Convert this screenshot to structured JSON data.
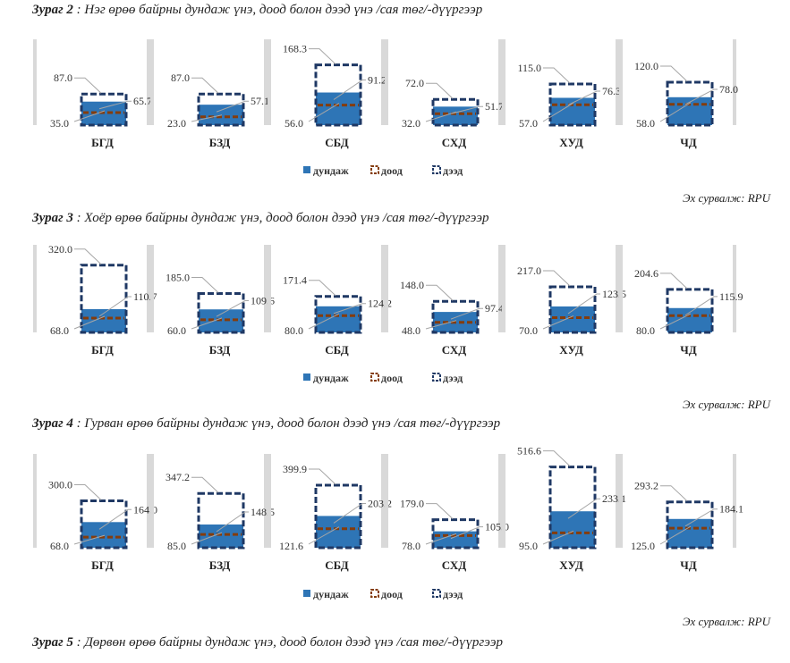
{
  "colors": {
    "avg": "#2e75b6",
    "low": "#843c0c",
    "high": "#1f3864",
    "separator": "#d9d9d9",
    "leader": "#a6a6a6"
  },
  "figures": [
    {
      "label": "Зураг 2",
      "rest": " : Нэг өрөө байрны дундаж үнэ, доод болон дээд үнэ /сая төг/-дүүргээр",
      "source": "Эх сурвалж: RPU"
    },
    {
      "label": "Зураг 3",
      "rest": " : Хоёр өрөө байрны дундаж үнэ, доод болон дээд үнэ /сая төг/-дүүргээр",
      "source": "Эх сурвалж: RPU"
    },
    {
      "label": "Зураг 4",
      "rest": " : Гурван өрөө байрны дундаж үнэ, доод болон дээд үнэ /сая төг/-дүүргээр",
      "source": "Эх сурвалж: RPU"
    },
    {
      "label": "Зураг 5",
      "rest": " : Дөрвөн өрөө байрны дундаж үнэ, доод болон дээд үнэ /сая төг/-дүүргээр"
    }
  ],
  "chart_data": [
    {
      "type": "bar",
      "categories": [
        "БГД",
        "БЗД",
        "СБД",
        "СХД",
        "ХУД",
        "ЧД"
      ],
      "series": [
        {
          "name": "дундаж",
          "values": [
            65.7,
            57.1,
            91.2,
            51.7,
            76.3,
            78.0
          ]
        },
        {
          "name": "доод",
          "values": [
            35.0,
            23.0,
            56.0,
            32.0,
            57.0,
            58.0
          ]
        },
        {
          "name": "дээд",
          "values": [
            87.0,
            87.0,
            168.3,
            72.0,
            115.0,
            120.0
          ]
        }
      ],
      "legend": "bottom-center"
    },
    {
      "type": "bar",
      "categories": [
        "БГД",
        "БЗД",
        "СБД",
        "СХД",
        "ХУД",
        "ЧД"
      ],
      "series": [
        {
          "name": "дундаж",
          "values": [
            110.7,
            109.6,
            124.2,
            97.4,
            123.5,
            115.9
          ]
        },
        {
          "name": "доод",
          "values": [
            68.0,
            60.0,
            80.0,
            48.0,
            70.0,
            80.0
          ]
        },
        {
          "name": "дээд",
          "values": [
            320.0,
            185.0,
            171.4,
            148.0,
            217.0,
            204.6
          ]
        }
      ],
      "legend": "bottom-center"
    },
    {
      "type": "bar",
      "categories": [
        "БГД",
        "БЗД",
        "СБД",
        "СХД",
        "ХУД",
        "ЧД"
      ],
      "series": [
        {
          "name": "дундаж",
          "values": [
            164.0,
            148.5,
            203.2,
            105.0,
            233.1,
            184.1
          ]
        },
        {
          "name": "доод",
          "values": [
            68.0,
            85.0,
            121.6,
            78.0,
            95.0,
            125.0
          ]
        },
        {
          "name": "дээд",
          "values": [
            300.0,
            347.2,
            399.9,
            179.0,
            516.6,
            293.2
          ]
        }
      ],
      "legend": "bottom-center"
    }
  ]
}
